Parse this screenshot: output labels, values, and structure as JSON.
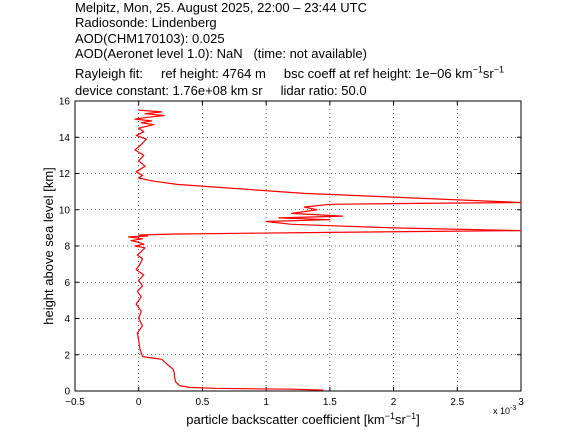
{
  "header": {
    "line1": "Melpitz, Mon, 25. August 2025, 22:00 – 23:44 UTC",
    "line2": "Radiosonde: Lindenberg",
    "line3": "AOD(CHM170103): 0.025",
    "line4_label": "AOD(Aeronet level 1.0): NaN",
    "line4_note": "(time: not available)",
    "rayleigh_label": "Rayleigh fit:",
    "ref_height": "ref height: 4764 m",
    "bsc_coeff_prefix": "bsc coeff at ref height: 1e−06 km",
    "bsc_exp1": "−1",
    "bsc_mid": "sr",
    "bsc_exp2": "−1",
    "device_constant": "device constant: 1.76e+08 km sr",
    "lidar_ratio": "lidar ratio: 50.0"
  },
  "chart_data": {
    "type": "line",
    "xlabel": "particle backscatter coefficient [km⁻¹sr⁻¹]",
    "xlabel_main": "particle backscatter coefficient [km",
    "xlabel_exp1": "−1",
    "xlabel_mid": "sr",
    "xlabel_exp2": "−1",
    "xlabel_end": "]",
    "ylabel": "height above sea level [km]",
    "x_multiplier": "x 10",
    "x_multiplier_exp": "-3",
    "xlim": [
      -0.5,
      3
    ],
    "ylim": [
      0,
      16
    ],
    "xticks": [
      -0.5,
      0,
      0.5,
      1,
      1.5,
      2,
      2.5,
      3
    ],
    "xtick_labels": [
      "−0.5",
      "0",
      "0.5",
      "1",
      "1.5",
      "2",
      "2.5",
      "3"
    ],
    "yticks": [
      0,
      2,
      4,
      6,
      8,
      10,
      12,
      14,
      16
    ],
    "ytick_labels": [
      "0",
      "2",
      "4",
      "6",
      "8",
      "10",
      "12",
      "14",
      "16"
    ],
    "grid": true,
    "series_color": "#ff0000",
    "series": [
      {
        "x": [
          1.45,
          1.2,
          0.9,
          0.6,
          0.4,
          0.32,
          0.29,
          0.28,
          0.28,
          0.27,
          0.22,
          0.18,
          0.08,
          0.03,
          0.01,
          0.0,
          -0.01,
          0.03,
          0.0,
          0.02,
          -0.02,
          0.02,
          -0.01,
          0.03,
          0.0,
          0.04,
          -0.02,
          0.01,
          0.03,
          -0.01,
          0.02,
          0.05,
          -0.03,
          0.04,
          0.0,
          -0.06,
          0.03,
          -0.08,
          0.07,
          0.0,
          0.1,
          0.3,
          0.8,
          1.5,
          2.2,
          3.0,
          2.0,
          1.2,
          1.0,
          1.5,
          1.1,
          1.6,
          1.2,
          1.4,
          1.3,
          1.5,
          2.2,
          3.0,
          1.3,
          0.3,
          0.1,
          0.0,
          0.03,
          -0.02,
          0.05,
          0.0,
          0.04,
          -0.03,
          0.02,
          0.06,
          -0.02,
          0.04,
          0.0,
          0.12,
          0.02,
          0.1,
          -0.03,
          0.07,
          0.2,
          0.05,
          0.18,
          0.0
        ],
        "y": [
          0.05,
          0.1,
          0.12,
          0.15,
          0.2,
          0.3,
          0.5,
          0.8,
          1.0,
          1.2,
          1.5,
          1.75,
          1.85,
          1.9,
          2.3,
          2.8,
          3.2,
          3.6,
          4.0,
          4.4,
          4.8,
          5.2,
          5.5,
          5.8,
          6.1,
          6.4,
          6.7,
          7.0,
          7.3,
          7.5,
          7.7,
          7.9,
          8.0,
          8.1,
          8.2,
          8.3,
          8.4,
          8.5,
          8.55,
          8.6,
          8.63,
          8.66,
          8.7,
          8.75,
          8.8,
          8.85,
          9.0,
          9.2,
          9.35,
          9.45,
          9.55,
          9.65,
          9.8,
          10.0,
          10.15,
          10.3,
          10.35,
          10.4,
          10.9,
          11.4,
          11.6,
          11.75,
          11.9,
          12.1,
          12.4,
          12.7,
          13.0,
          13.3,
          13.6,
          13.9,
          14.1,
          14.3,
          14.5,
          14.7,
          14.8,
          14.9,
          15.0,
          15.1,
          15.2,
          15.3,
          15.4,
          15.5
        ]
      }
    ]
  }
}
